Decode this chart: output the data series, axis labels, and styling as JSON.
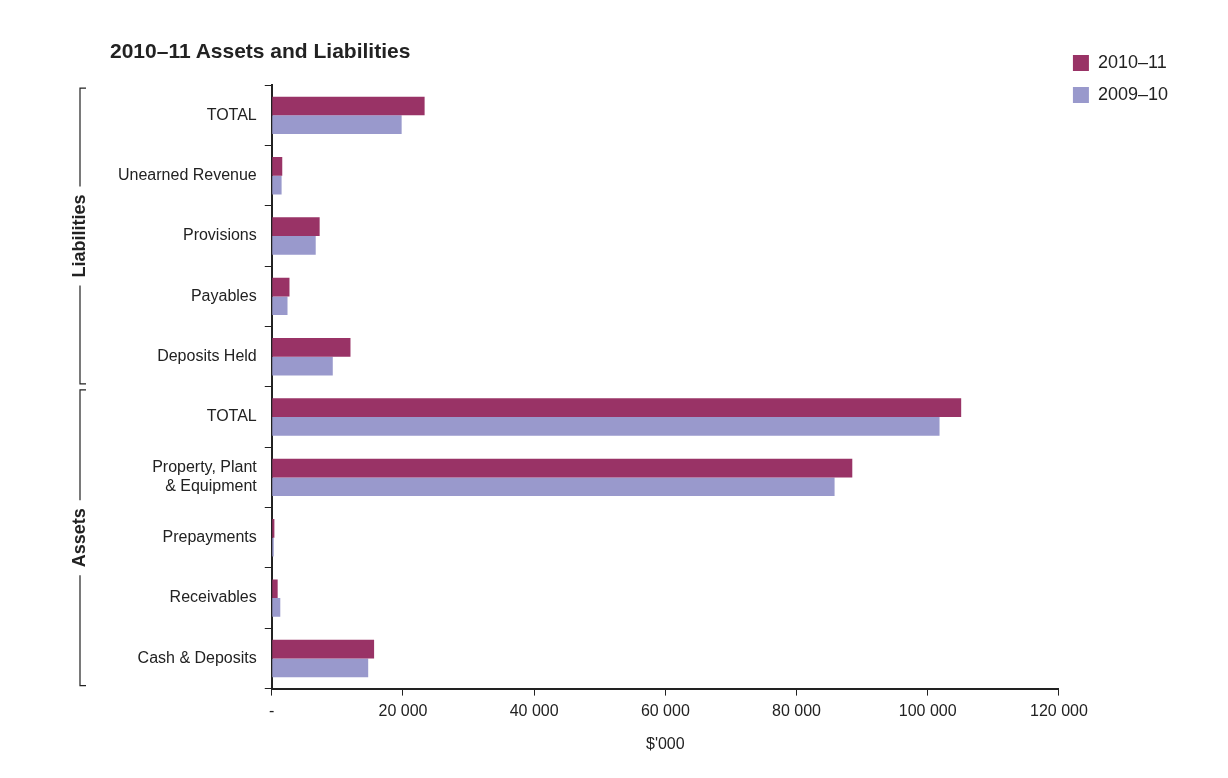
{
  "chart_data": {
    "type": "bar",
    "orientation": "horizontal",
    "title": "2010–11 Assets and Liabilities",
    "xlabel": "$'000",
    "categories": [
      "TOTAL",
      "Unearned Revenue",
      "Provisions",
      "Payables",
      "Deposits Held",
      "TOTAL",
      [
        "Property, Plant",
        "& Equipment"
      ],
      "Prepayments",
      "Receivables",
      "Cash & Deposits"
    ],
    "series": [
      {
        "name": "2010–11",
        "color": "#993366",
        "values": [
          23300,
          1600,
          7300,
          2700,
          12000,
          105100,
          88500,
          400,
          900,
          15600
        ]
      },
      {
        "name": "2009–10",
        "color": "#9999cc",
        "values": [
          19800,
          1500,
          6700,
          2400,
          9300,
          101800,
          85800,
          300,
          1300,
          14700
        ]
      }
    ],
    "xlim": [
      0,
      120000
    ],
    "xticks": [
      {
        "value": 0,
        "label": "-"
      },
      {
        "value": 20000,
        "label": "20 000"
      },
      {
        "value": 40000,
        "label": "40 000"
      },
      {
        "value": 60000,
        "label": "60 000"
      },
      {
        "value": 80000,
        "label": "80 000"
      },
      {
        "value": 100000,
        "label": "100 000"
      },
      {
        "value": 120000,
        "label": "120 000"
      }
    ],
    "annotations": [
      "Liabilities",
      "Assets"
    ],
    "grid": false,
    "legend": "top right"
  }
}
